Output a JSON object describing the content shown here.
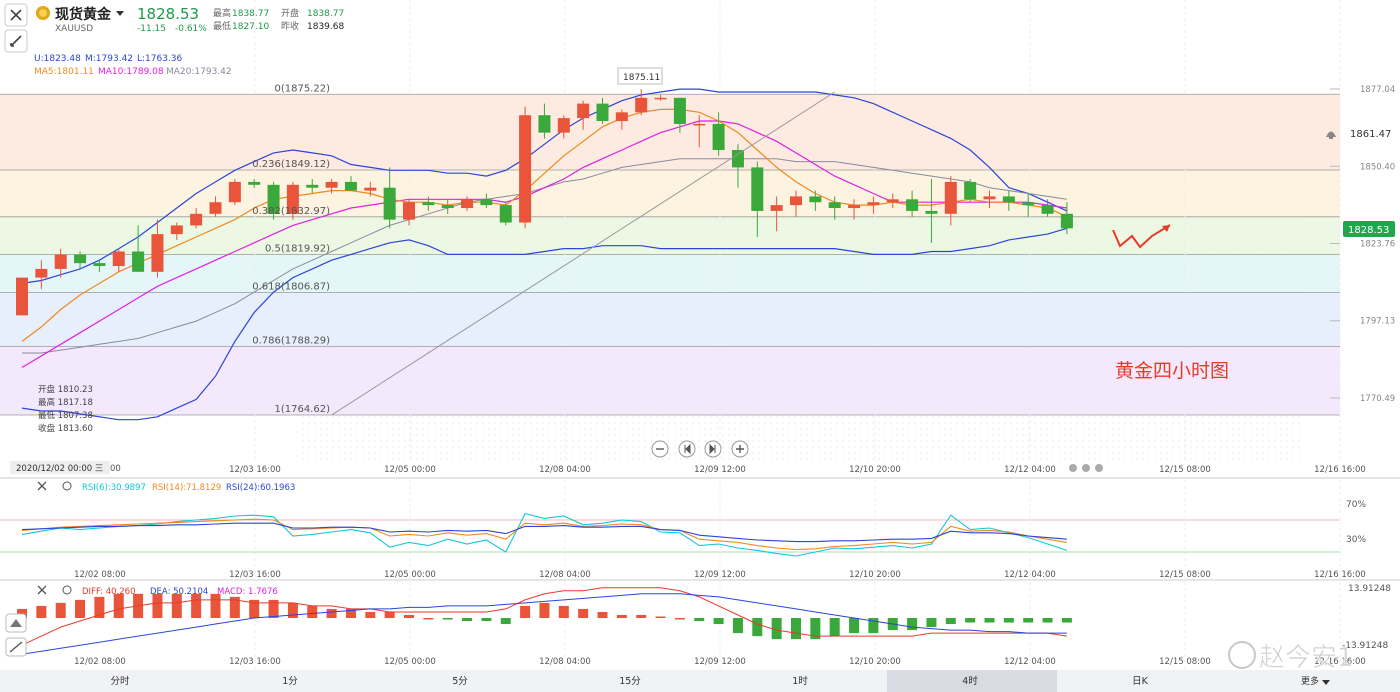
{
  "header": {
    "title": "现货黄金",
    "symbol": "XAUUSD",
    "price": "1828.53",
    "change": "-11.15",
    "change_pct": "-0.61%",
    "labels": {
      "high": "最高",
      "open": "开盘",
      "low": "最低",
      "prev_close": "昨收"
    },
    "high": "1838.77",
    "open": "1838.77",
    "low": "1827.10",
    "prev_close": "1839.68"
  },
  "legend": {
    "boll": [
      "U:1823.48",
      "M:1793.42",
      "L:1763.36"
    ],
    "ma": [
      "MA5:1801.11",
      "MA10:1789.08",
      "MA20:1793.42"
    ]
  },
  "ohlc_box": [
    "开盘 1810.23",
    "最高 1817.18",
    "最低 1807.38",
    "收盘 1813.60"
  ],
  "annotation": "黄金四小时图",
  "peak_label": "1875.11",
  "alert_price": "1861.47",
  "current_price": "1828.53",
  "crosshair_date": "2020/12/02 00:00 三",
  "rsi_legend": [
    "RSI(6):30.9897",
    "RSI(14):71.8129",
    "RSI(24):60.1963"
  ],
  "rsi_ticks": [
    "70%",
    "30%"
  ],
  "macd_legend": [
    "DIFF: 40.260",
    "DEA: 50.2104",
    "MACD: 1.7676"
  ],
  "macd_top": "13.91248",
  "macd_bot": "-13.91248",
  "timeframes": [
    "分时",
    "1分",
    "5分",
    "15分",
    "1时",
    "4时",
    "日K"
  ],
  "active_timeframe": "4时",
  "more_label": "更多",
  "watermark": "赵今安1",
  "colors": {
    "up": "#e8553a",
    "down": "#3aa83a",
    "upper_band": "#2b46d8",
    "ma5": "#f08a1e",
    "ma10": "#e020e0",
    "ma20": "#8a8aa0"
  },
  "chart_data": [
    {
      "type": "candlestick",
      "title": "",
      "xlabel": "",
      "ylabel": "",
      "x_ticks": [
        "12/03 16:00",
        "12/05 00:00",
        "12/08 04:00",
        "12/09 12:00",
        "12/10 20:00",
        "12/12 04:00",
        "12/15 08:00",
        "12/16 16:00"
      ],
      "y_ticks": [
        "1877.04",
        "1850.40",
        "1823.76",
        "1797.13",
        "1770.49"
      ],
      "ylim": [
        1755,
        1885
      ],
      "fib_levels": [
        {
          "label": "0(1875.22)",
          "value": 1875.22
        },
        {
          "label": "0.236(1849.12)",
          "value": 1849.12
        },
        {
          "label": "0.382(1832.97)",
          "value": 1832.97
        },
        {
          "label": "0.5(1819.92)",
          "value": 1819.92
        },
        {
          "label": "0.618(1806.87)",
          "value": 1806.87
        },
        {
          "label": "0.786(1788.29)",
          "value": 1788.29
        },
        {
          "label": "1(1764.62)",
          "value": 1764.62
        }
      ],
      "candles": [
        [
          1799,
          1812,
          1799,
          1812
        ],
        [
          1812,
          1818,
          1808,
          1815
        ],
        [
          1815,
          1822,
          1812,
          1820
        ],
        [
          1820,
          1821,
          1815,
          1817
        ],
        [
          1817,
          1818,
          1814,
          1816
        ],
        [
          1816,
          1822,
          1814,
          1821
        ],
        [
          1821,
          1830,
          1815,
          1814
        ],
        [
          1814,
          1832,
          1812,
          1827
        ],
        [
          1827,
          1831,
          1825,
          1830
        ],
        [
          1830,
          1836,
          1829,
          1834
        ],
        [
          1834,
          1840,
          1833,
          1838
        ],
        [
          1838,
          1846,
          1837,
          1845
        ],
        [
          1845,
          1846,
          1843,
          1844
        ],
        [
          1844,
          1845,
          1832,
          1834
        ],
        [
          1834,
          1845,
          1832,
          1844
        ],
        [
          1844,
          1846,
          1841,
          1843
        ],
        [
          1843,
          1846,
          1841,
          1845
        ],
        [
          1845,
          1847,
          1842,
          1842
        ],
        [
          1842,
          1845,
          1840,
          1843
        ],
        [
          1843,
          1850,
          1829,
          1832
        ],
        [
          1832,
          1839,
          1830,
          1838
        ],
        [
          1838,
          1840,
          1835,
          1837
        ],
        [
          1837,
          1839,
          1834,
          1836
        ],
        [
          1836,
          1840,
          1835,
          1839
        ],
        [
          1839,
          1841,
          1836,
          1837
        ],
        [
          1837,
          1838,
          1830,
          1831
        ],
        [
          1831,
          1871,
          1829,
          1868
        ],
        [
          1868,
          1872,
          1860,
          1862
        ],
        [
          1862,
          1868,
          1860,
          1867
        ],
        [
          1867,
          1873,
          1863,
          1872
        ],
        [
          1872,
          1874,
          1865,
          1866
        ],
        [
          1866,
          1870,
          1863,
          1869
        ],
        [
          1869,
          1877,
          1868,
          1874
        ],
        [
          1874,
          1875,
          1873,
          1874
        ],
        [
          1874,
          1873,
          1862,
          1865
        ],
        [
          1865,
          1868,
          1857,
          1865
        ],
        [
          1865,
          1869,
          1854,
          1856
        ],
        [
          1856,
          1858,
          1843,
          1850
        ],
        [
          1850,
          1852,
          1826,
          1835
        ],
        [
          1835,
          1840,
          1828,
          1837
        ],
        [
          1837,
          1842,
          1833,
          1840
        ],
        [
          1840,
          1842,
          1835,
          1838
        ],
        [
          1838,
          1840,
          1832,
          1836
        ],
        [
          1836,
          1839,
          1832,
          1837
        ],
        [
          1837,
          1840,
          1834,
          1838
        ],
        [
          1838,
          1841,
          1836,
          1839
        ],
        [
          1839,
          1842,
          1833,
          1835
        ],
        [
          1835,
          1846,
          1824,
          1834
        ],
        [
          1834,
          1847,
          1830,
          1845
        ],
        [
          1845,
          1846,
          1838,
          1839
        ],
        [
          1839,
          1842,
          1836,
          1840
        ],
        [
          1840,
          1842,
          1835,
          1838
        ],
        [
          1838,
          1841,
          1833,
          1837
        ],
        [
          1837,
          1839,
          1833,
          1834
        ],
        [
          1834,
          1838,
          1827,
          1829
        ]
      ],
      "bollinger_upper": [
        1810,
        1811,
        1813,
        1815,
        1818,
        1822,
        1826,
        1831,
        1836,
        1841,
        1845,
        1849,
        1852,
        1855,
        1856,
        1855,
        1854,
        1851,
        1850,
        1849,
        1849,
        1849,
        1848,
        1848,
        1847,
        1849,
        1853,
        1858,
        1863,
        1867,
        1870,
        1873,
        1875,
        1876,
        1877,
        1877,
        1876,
        1876,
        1876,
        1876,
        1876,
        1876,
        1875,
        1874,
        1872,
        1869,
        1866,
        1863,
        1860,
        1856,
        1850,
        1843,
        1841,
        1838,
        1835
      ],
      "bollinger_lower": [
        1767,
        1766,
        1766,
        1765,
        1764,
        1763,
        1763,
        1764,
        1767,
        1770,
        1778,
        1790,
        1800,
        1807,
        1812,
        1815,
        1818,
        1820,
        1822,
        1824,
        1825,
        1823,
        1820,
        1820,
        1820,
        1820,
        1820,
        1821,
        1822,
        1822,
        1823,
        1823,
        1823,
        1822,
        1822,
        1822,
        1822,
        1822,
        1822,
        1822,
        1822,
        1822,
        1822,
        1821,
        1820,
        1820,
        1820,
        1821,
        1821,
        1822,
        1823,
        1825,
        1826,
        1827,
        1829
      ],
      "ma5": [
        1790,
        1795,
        1801,
        1806,
        1810,
        1814,
        1817,
        1820,
        1823,
        1826,
        1829,
        1832,
        1836,
        1839,
        1840,
        1841,
        1842,
        1842,
        1841,
        1839,
        1838,
        1838,
        1837,
        1838,
        1838,
        1837,
        1842,
        1848,
        1854,
        1859,
        1864,
        1867,
        1869,
        1870,
        1870,
        1869,
        1866,
        1862,
        1856,
        1850,
        1845,
        1841,
        1838,
        1837,
        1837,
        1838,
        1837,
        1837,
        1838,
        1839,
        1838,
        1838,
        1837,
        1836,
        1833
      ],
      "ma10": [
        1781,
        1785,
        1789,
        1793,
        1797,
        1801,
        1805,
        1809,
        1812,
        1815,
        1818,
        1821,
        1824,
        1827,
        1830,
        1832,
        1834,
        1836,
        1837,
        1838,
        1839,
        1839,
        1839,
        1839,
        1839,
        1838,
        1840,
        1843,
        1846,
        1850,
        1853,
        1856,
        1859,
        1862,
        1864,
        1866,
        1866,
        1865,
        1862,
        1859,
        1855,
        1851,
        1847,
        1844,
        1841,
        1838,
        1838,
        1838,
        1838,
        1838,
        1838,
        1838,
        1838,
        1837,
        1836
      ],
      "ma20": [
        1786,
        1786,
        1787,
        1788,
        1789,
        1790,
        1791,
        1793,
        1795,
        1797,
        1800,
        1803,
        1807,
        1811,
        1815,
        1818,
        1821,
        1824,
        1827,
        1830,
        1832,
        1834,
        1836,
        1838,
        1839,
        1840,
        1841,
        1843,
        1845,
        1846,
        1848,
        1850,
        1851,
        1852,
        1853,
        1853,
        1853,
        1853,
        1853,
        1853,
        1852,
        1852,
        1852,
        1851,
        1850,
        1849,
        1848,
        1847,
        1846,
        1845,
        1843,
        1842,
        1841,
        1840,
        1839
      ],
      "trendline": [
        [
          16,
          1764.62
        ],
        [
          42,
          1876
        ]
      ]
    },
    {
      "type": "line",
      "title": "RSI",
      "ylim": [
        0,
        100
      ],
      "series": [
        {
          "name": "RSI(6):30.9897",
          "values": [
            52,
            56,
            60,
            58,
            60,
            62,
            63,
            65,
            68,
            70,
            72,
            75,
            76,
            74,
            50,
            52,
            55,
            58,
            54,
            36,
            42,
            38,
            46,
            40,
            45,
            30,
            78,
            72,
            75,
            64,
            66,
            70,
            68,
            55,
            54,
            38,
            40,
            35,
            32,
            28,
            25,
            30,
            35,
            34,
            36,
            38,
            35,
            40,
            76,
            58,
            60,
            54,
            48,
            40,
            32
          ]
        },
        {
          "name": "RSI(14):71.8129",
          "values": [
            57,
            59,
            61,
            62,
            63,
            64,
            65,
            66,
            67,
            68,
            69,
            70,
            71,
            70,
            58,
            59,
            60,
            61,
            60,
            50,
            52,
            50,
            54,
            51,
            53,
            46,
            66,
            64,
            66,
            62,
            63,
            65,
            64,
            58,
            57,
            46,
            44,
            42,
            38,
            35,
            33,
            34,
            37,
            38,
            40,
            42,
            40,
            42,
            62,
            56,
            57,
            55,
            50,
            46,
            42
          ]
        },
        {
          "name": "RSI(24):60.1963",
          "values": [
            58,
            59,
            60,
            61,
            62,
            62,
            63,
            63,
            64,
            64,
            65,
            66,
            66,
            66,
            60,
            60,
            61,
            61,
            60,
            55,
            56,
            55,
            57,
            56,
            57,
            53,
            62,
            62,
            63,
            61,
            61,
            62,
            62,
            58,
            57,
            51,
            49,
            47,
            45,
            44,
            43,
            43,
            44,
            44,
            45,
            46,
            46,
            47,
            56,
            54,
            54,
            53,
            50,
            48,
            46
          ]
        }
      ]
    },
    {
      "type": "bar",
      "title": "MACD",
      "ylim": [
        -13.91248,
        13.91248
      ],
      "series": [
        {
          "name": "MACD: 1.7676",
          "values": [
            3,
            4,
            5,
            6,
            7,
            8,
            8,
            8,
            8,
            8,
            8,
            7,
            6,
            6,
            5,
            4,
            3,
            3,
            2,
            2,
            1,
            0,
            -0.5,
            -1,
            -1,
            -2,
            4,
            5,
            4,
            3,
            2,
            1,
            1,
            0.5,
            0,
            -1,
            -2,
            -5,
            -6,
            -7,
            -7,
            -7,
            -6,
            -5,
            -5,
            -4,
            -4,
            -3,
            -2,
            -1.5,
            -1.5,
            -1.5,
            -1.5,
            -1.5,
            -1.5
          ]
        },
        {
          "name": "DIFF: 40.260",
          "values": [
            -9,
            -6,
            -3,
            -1,
            1,
            3,
            4,
            5,
            5,
            6,
            6,
            6,
            5,
            5,
            5,
            4,
            4,
            3,
            3,
            2,
            2,
            2,
            2,
            2,
            2,
            3,
            6,
            8,
            9,
            9,
            10,
            10,
            10,
            10,
            9,
            7,
            4,
            1,
            -2,
            -4,
            -5,
            -6,
            -6,
            -6,
            -6,
            -6,
            -6,
            -5,
            -5,
            -5,
            -5,
            -5,
            -5,
            -5,
            -6
          ]
        },
        {
          "name": "DEA: 50.2104",
          "values": [
            -12,
            -11,
            -10,
            -9,
            -8,
            -7,
            -6,
            -5,
            -4,
            -3,
            -2,
            -1,
            0,
            0.5,
            1,
            1.5,
            2,
            2.5,
            3,
            3,
            3.5,
            3.5,
            4,
            4,
            4,
            4.5,
            5,
            5.5,
            6,
            6.5,
            7,
            7.5,
            8,
            8,
            8,
            7.5,
            7,
            6,
            5,
            4,
            3,
            2,
            1,
            0,
            -1,
            -2,
            -3,
            -3.5,
            -4,
            -4,
            -4.5,
            -4.5,
            -5,
            -5,
            -5
          ]
        }
      ]
    }
  ]
}
